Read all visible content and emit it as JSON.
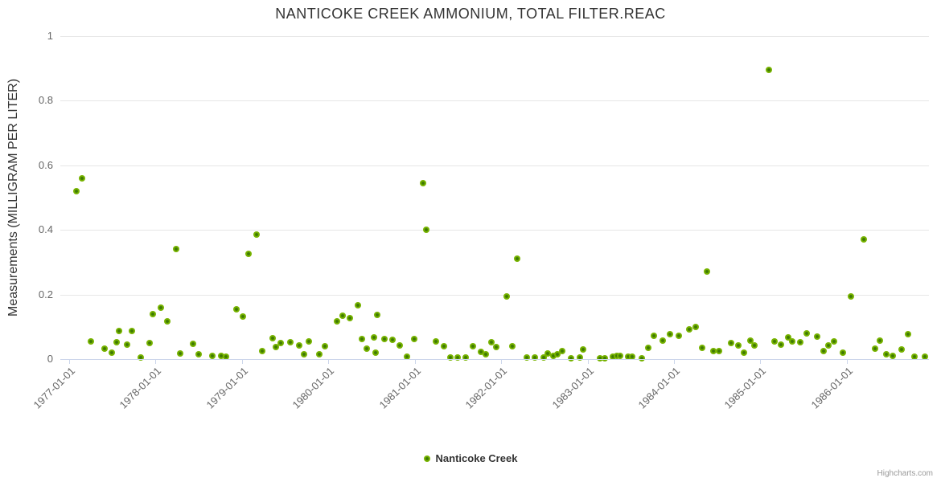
{
  "header": {
    "title": "NANTICOKE CREEK AMMONIUM, TOTAL FILTER.REAC"
  },
  "legend": {
    "items": [
      {
        "label": "Nanticoke Creek",
        "color": "#77b300"
      }
    ]
  },
  "credits": {
    "label": "Highcharts.com"
  },
  "colors": {
    "marker": "#77b300",
    "marker_center": "#3e7a02",
    "grid": "#e6e6e6",
    "axis_line": "#ccd6eb",
    "title_text": "#333333",
    "tick_text": "#666666",
    "credits_text": "#999999"
  },
  "chart_data": {
    "type": "scatter",
    "title": "NANTICOKE CREEK AMMONIUM, TOTAL FILTER.REAC",
    "xlabel": "",
    "ylabel": "Measurements (MILLIGRAM PER LITER)",
    "xlim": [
      1976.9,
      1986.95
    ],
    "ylim": [
      0,
      1
    ],
    "x_unit": "decimal_year",
    "grid": "horizontal-only",
    "legend_position": "bottom-center",
    "x_ticks": {
      "values": [
        1977,
        1978,
        1979,
        1980,
        1981,
        1982,
        1983,
        1984,
        1985,
        1986
      ],
      "labels": [
        "1977-01-01",
        "1978-01-01",
        "1979-01-01",
        "1980-01-01",
        "1981-01-01",
        "1982-01-01",
        "1983-01-01",
        "1984-01-01",
        "1985-01-01",
        "1986-01-01"
      ],
      "label_rotation": -45
    },
    "y_ticks": {
      "values": [
        0,
        0.2,
        0.4,
        0.6,
        0.8,
        1
      ],
      "labels": [
        "0",
        "0.2",
        "0.4",
        "0.6",
        "0.8",
        "1"
      ]
    },
    "series": [
      {
        "name": "Nanticoke Creek",
        "color": "#77b300",
        "marker_center_color": "#3e7a02",
        "points": [
          [
            1977.09,
            0.52
          ],
          [
            1977.15,
            0.56
          ],
          [
            1977.25,
            0.055
          ],
          [
            1977.41,
            0.032
          ],
          [
            1977.5,
            0.021
          ],
          [
            1977.55,
            0.051
          ],
          [
            1977.58,
            0.087
          ],
          [
            1977.67,
            0.045
          ],
          [
            1977.73,
            0.088
          ],
          [
            1977.83,
            0.005
          ],
          [
            1977.93,
            0.05
          ],
          [
            1977.97,
            0.14
          ],
          [
            1978.06,
            0.158
          ],
          [
            1978.14,
            0.117
          ],
          [
            1978.24,
            0.34
          ],
          [
            1978.29,
            0.017
          ],
          [
            1978.44,
            0.048
          ],
          [
            1978.5,
            0.016
          ],
          [
            1978.66,
            0.01
          ],
          [
            1978.76,
            0.009
          ],
          [
            1978.82,
            0.007
          ],
          [
            1978.94,
            0.155
          ],
          [
            1979.01,
            0.133
          ],
          [
            1979.08,
            0.325
          ],
          [
            1979.17,
            0.385
          ],
          [
            1979.24,
            0.025
          ],
          [
            1979.36,
            0.065
          ],
          [
            1979.39,
            0.037
          ],
          [
            1979.45,
            0.05
          ],
          [
            1979.56,
            0.053
          ],
          [
            1979.66,
            0.042
          ],
          [
            1979.72,
            0.016
          ],
          [
            1979.78,
            0.055
          ],
          [
            1979.9,
            0.014
          ],
          [
            1979.96,
            0.04
          ],
          [
            1980.1,
            0.118
          ],
          [
            1980.17,
            0.135
          ],
          [
            1980.25,
            0.126
          ],
          [
            1980.34,
            0.167
          ],
          [
            1980.39,
            0.062
          ],
          [
            1980.45,
            0.033
          ],
          [
            1980.53,
            0.068
          ],
          [
            1980.55,
            0.021
          ],
          [
            1980.57,
            0.137
          ],
          [
            1980.65,
            0.061
          ],
          [
            1980.74,
            0.06
          ],
          [
            1980.83,
            0.043
          ],
          [
            1980.91,
            0.008
          ],
          [
            1980.99,
            0.063
          ],
          [
            1981.1,
            0.545
          ],
          [
            1981.13,
            0.4
          ],
          [
            1981.25,
            0.055
          ],
          [
            1981.34,
            0.04
          ],
          [
            1981.41,
            0.005
          ],
          [
            1981.5,
            0.006
          ],
          [
            1981.59,
            0.006
          ],
          [
            1981.67,
            0.041
          ],
          [
            1981.77,
            0.022
          ],
          [
            1981.82,
            0.016
          ],
          [
            1981.89,
            0.051
          ],
          [
            1981.94,
            0.037
          ],
          [
            1982.06,
            0.195
          ],
          [
            1982.13,
            0.04
          ],
          [
            1982.19,
            0.31
          ],
          [
            1982.3,
            0.006
          ],
          [
            1982.39,
            0.006
          ],
          [
            1982.49,
            0.004
          ],
          [
            1982.54,
            0.018
          ],
          [
            1982.6,
            0.011
          ],
          [
            1982.65,
            0.016
          ],
          [
            1982.71,
            0.026
          ],
          [
            1982.81,
            0.003
          ],
          [
            1982.91,
            0.006
          ],
          [
            1982.95,
            0.03
          ],
          [
            1983.14,
            0.003
          ],
          [
            1983.2,
            0.003
          ],
          [
            1983.29,
            0.007
          ],
          [
            1983.34,
            0.011
          ],
          [
            1983.38,
            0.01
          ],
          [
            1983.47,
            0.008
          ],
          [
            1983.52,
            0.008
          ],
          [
            1983.63,
            0.003
          ],
          [
            1983.7,
            0.034
          ],
          [
            1983.77,
            0.071
          ],
          [
            1983.87,
            0.057
          ],
          [
            1983.95,
            0.078
          ],
          [
            1984.06,
            0.071
          ],
          [
            1984.18,
            0.093
          ],
          [
            1984.25,
            0.1
          ],
          [
            1984.33,
            0.036
          ],
          [
            1984.38,
            0.27
          ],
          [
            1984.46,
            0.024
          ],
          [
            1984.52,
            0.026
          ],
          [
            1984.66,
            0.05
          ],
          [
            1984.74,
            0.043
          ],
          [
            1984.81,
            0.021
          ],
          [
            1984.88,
            0.056
          ],
          [
            1984.93,
            0.042
          ],
          [
            1985.1,
            0.895
          ],
          [
            1985.16,
            0.055
          ],
          [
            1985.24,
            0.045
          ],
          [
            1985.32,
            0.067
          ],
          [
            1985.37,
            0.054
          ],
          [
            1985.46,
            0.051
          ],
          [
            1985.54,
            0.08
          ],
          [
            1985.66,
            0.069
          ],
          [
            1985.73,
            0.026
          ],
          [
            1985.79,
            0.043
          ],
          [
            1985.85,
            0.055
          ],
          [
            1985.95,
            0.02
          ],
          [
            1986.05,
            0.193
          ],
          [
            1986.2,
            0.37
          ],
          [
            1986.33,
            0.032
          ],
          [
            1986.38,
            0.057
          ],
          [
            1986.46,
            0.016
          ],
          [
            1986.53,
            0.011
          ],
          [
            1986.63,
            0.029
          ],
          [
            1986.71,
            0.077
          ],
          [
            1986.78,
            0.008
          ],
          [
            1986.9,
            0.008
          ]
        ]
      }
    ]
  }
}
